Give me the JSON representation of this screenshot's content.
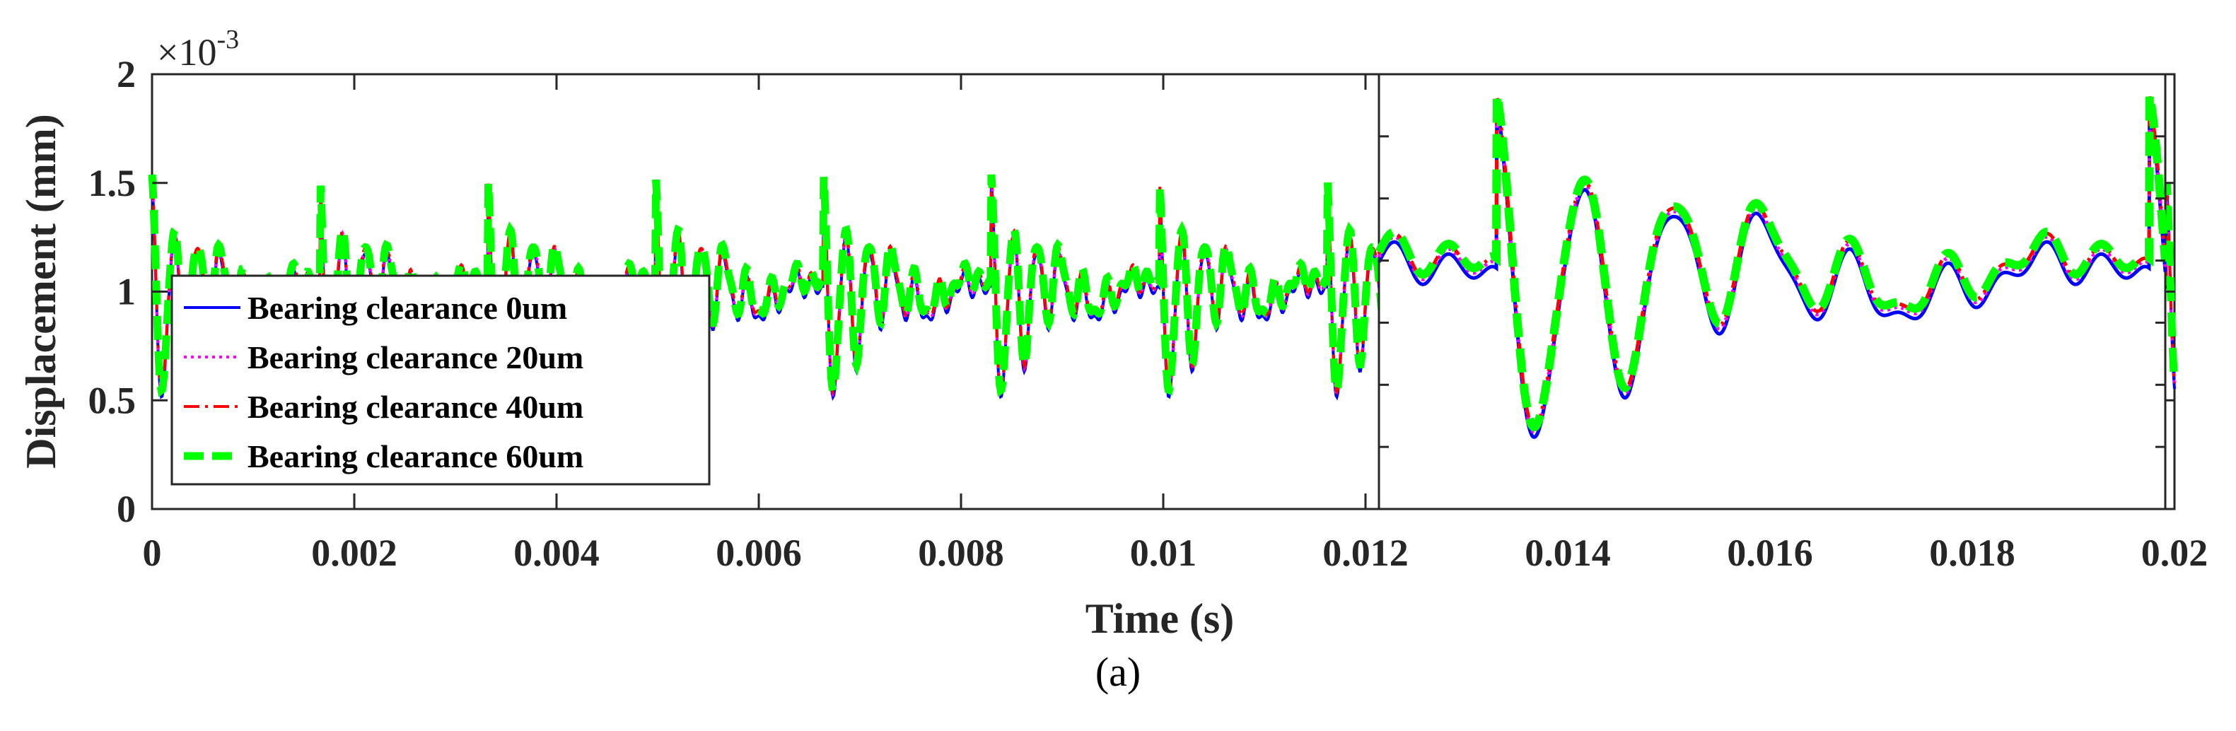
{
  "caption": "(a)",
  "colors": {
    "series_0": "#0000ff",
    "series_20": "#ff00ff",
    "series_40": "#ff0000",
    "series_60": "#00ff00",
    "axes": "#262626"
  },
  "chart_data": {
    "type": "line",
    "xlabel": "Time (s)",
    "ylabel": "Displacement  (mm)",
    "y_multiplier": {
      "base": "×10",
      "exponent": "-3"
    },
    "xlim": [
      0,
      0.02
    ],
    "ylim": [
      0,
      2
    ],
    "x_ticks": [
      0,
      0.002,
      0.004,
      0.006,
      0.008,
      0.01,
      0.012,
      0.014,
      0.016,
      0.018,
      0.02
    ],
    "x_tick_labels": [
      "0",
      "0.002",
      "0.004",
      "0.006",
      "0.008",
      "0.01",
      "0.012",
      "0.014",
      "0.016",
      "0.018",
      "0.02"
    ],
    "y_ticks": [
      0,
      0.5,
      1,
      1.5,
      2
    ],
    "y_tick_labels": [
      "0",
      "0.5",
      "1",
      "1.5",
      "2"
    ],
    "grid": false,
    "legend_position": "middle-left",
    "series": [
      {
        "name": "Bearing clearance 0um",
        "color": "#0000ff",
        "style": "solid",
        "offset": -0.02
      },
      {
        "name": "Bearing clearance 20um",
        "color": "#ff00ff",
        "style": "dotted",
        "offset": -0.005
      },
      {
        "name": "Bearing clearance 40um",
        "color": "#ff0000",
        "style": "dashdot",
        "offset": 0.005
      },
      {
        "name": "Bearing clearance 60um",
        "color": "#00ff00",
        "style": "dashed",
        "offset": 0.01
      }
    ],
    "inset": {
      "xlim": [
        0.008,
        0.01
      ],
      "ylim": [
        0.3,
        1.6
      ]
    }
  }
}
